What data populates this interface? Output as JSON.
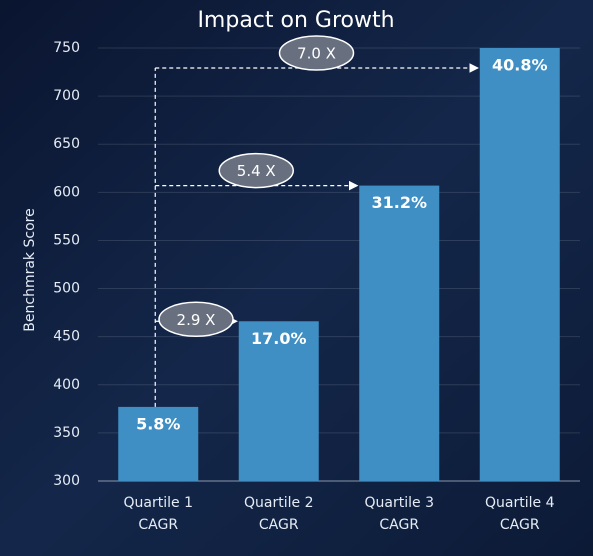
{
  "chart_data": {
    "type": "bar",
    "title": "Impact on Growth",
    "y_label": "Benchmrak Score",
    "categories": [
      "Quartile 1 CAGR",
      "Quartile 2 CAGR",
      "Quartile 3 CAGR",
      "Quartile 4 CAGR"
    ],
    "values": [
      377,
      466,
      607,
      750
    ],
    "bar_labels": [
      "5.8%",
      "17.0%",
      "31.2%",
      "40.8%"
    ],
    "annotations": [
      "2.9 X",
      "5.4 X",
      "7.0 X"
    ],
    "color": "#3f8fc4",
    "ylim": [
      300,
      750
    ],
    "yticks": [
      300,
      350,
      400,
      450,
      500,
      550,
      600,
      650,
      700,
      750
    ],
    "grid": true
  }
}
